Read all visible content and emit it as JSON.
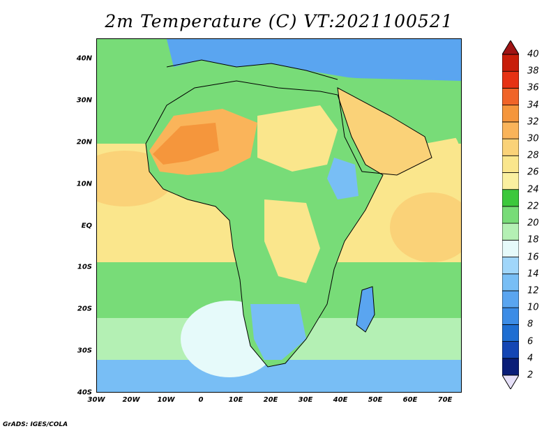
{
  "title": "2m Temperature (C) VT:2021100521",
  "credit": "GrADS: IGES/COLA",
  "map": {
    "lon_range": [
      -30,
      75
    ],
    "lat_range": [
      -40,
      45
    ],
    "lat_ticks": [
      "40N",
      "30N",
      "20N",
      "10N",
      "EQ",
      "10S",
      "20S",
      "30S",
      "40S"
    ],
    "lon_ticks": [
      "30W",
      "20W",
      "10W",
      "0",
      "10E",
      "20E",
      "30E",
      "40E",
      "50E",
      "60E",
      "70E"
    ]
  },
  "colorbar": {
    "levels": [
      "2",
      "4",
      "6",
      "8",
      "10",
      "12",
      "14",
      "16",
      "18",
      "20",
      "22",
      "24",
      "26",
      "28",
      "30",
      "32",
      "34",
      "36",
      "38",
      "40"
    ],
    "colors": [
      "#e6e0f8",
      "#0a1e78",
      "#1446b4",
      "#1e6ed2",
      "#3c8ce6",
      "#5aa5f0",
      "#78bef5",
      "#a0d6fa",
      "#e6fafa",
      "#b4f0b4",
      "#78dc78",
      "#3cc83c",
      "#faf0a0",
      "#fae68c",
      "#fad278",
      "#fab45a",
      "#f5963c",
      "#f06428",
      "#e63214",
      "#c81e0a",
      "#a01414"
    ],
    "under_color": "#e6e0f8",
    "over_color": "#a01414"
  },
  "colors": {
    "ocean_cool": "#a0d6fa",
    "ocean_mild": "#b4f0b4",
    "ocean_warm": "#fae68c",
    "land_warm": "#78dc78",
    "desert_hot": "#fab45a",
    "highland_cool": "#5aa5f0",
    "coastline": "#000000"
  }
}
